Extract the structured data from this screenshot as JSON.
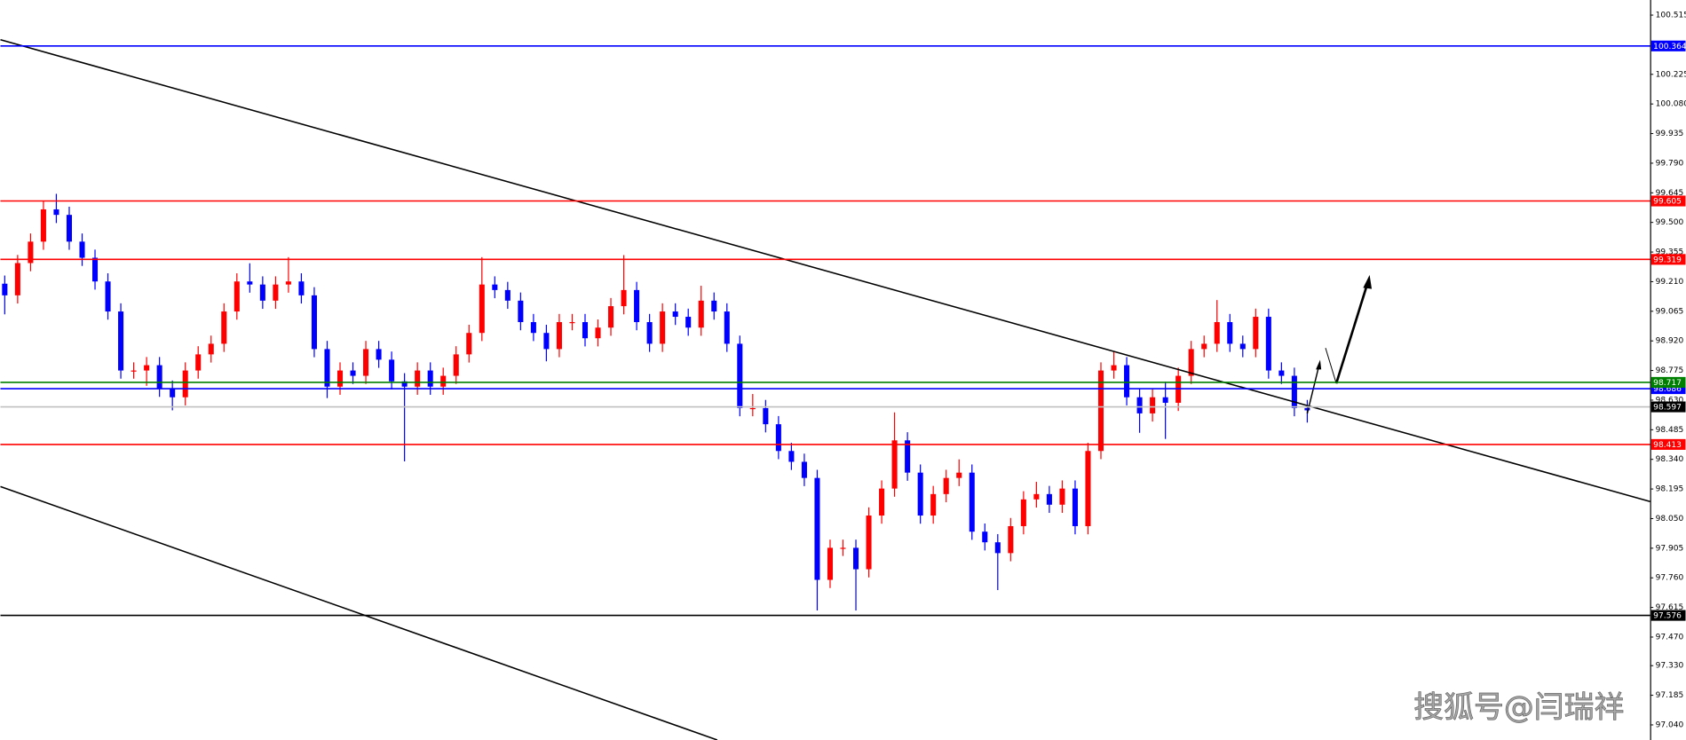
{
  "chart_data": {
    "type": "candlestick",
    "up_color": "#ff0000",
    "down_color": "#0000ff",
    "open": [
      99.2,
      99.143,
      99.301,
      99.406,
      99.564,
      99.537,
      99.406,
      99.327,
      99.211,
      99.064,
      98.775,
      98.775,
      98.801,
      98.686,
      98.644,
      98.775,
      98.854,
      98.906,
      99.064,
      99.211,
      99.196,
      99.117,
      99.196,
      99.211,
      99.143,
      98.88,
      98.696,
      98.775,
      98.749,
      98.88,
      98.828,
      98.722,
      98.696,
      98.775,
      98.696,
      98.749,
      98.854,
      98.959,
      99.196,
      99.169,
      99.117,
      99.012,
      98.959,
      98.88,
      99.012,
      99.012,
      98.933,
      98.985,
      99.09,
      99.169,
      99.012,
      98.906,
      99.064,
      99.038,
      98.985,
      99.117,
      99.064,
      98.906,
      98.591,
      98.591,
      98.512,
      98.381,
      98.328,
      98.249,
      97.75,
      97.907,
      97.907,
      97.802,
      98.065,
      98.197,
      98.433,
      98.275,
      98.065,
      98.17,
      98.249,
      98.275,
      97.986,
      97.934,
      97.881,
      98.013,
      98.144,
      98.17,
      98.118,
      98.197,
      98.013,
      98.381,
      98.775,
      98.801,
      98.644,
      98.565,
      98.644,
      98.617,
      98.749,
      98.88,
      98.906,
      99.012,
      98.906,
      98.88,
      99.038,
      98.775,
      98.749,
      98.591
    ],
    "high": [
      99.24,
      99.341,
      99.446,
      99.604,
      99.64,
      99.577,
      99.446,
      99.367,
      99.251,
      99.104,
      98.815,
      98.841,
      98.841,
      98.726,
      98.815,
      98.894,
      98.946,
      99.104,
      99.251,
      99.3,
      99.236,
      99.236,
      99.33,
      99.251,
      99.183,
      98.92,
      98.815,
      98.815,
      98.92,
      98.92,
      98.868,
      98.762,
      98.815,
      98.815,
      98.789,
      98.894,
      98.999,
      99.33,
      99.236,
      99.209,
      99.157,
      99.052,
      98.999,
      99.052,
      99.052,
      99.052,
      99.025,
      99.13,
      99.34,
      99.209,
      99.052,
      99.104,
      99.104,
      99.078,
      99.19,
      99.157,
      99.104,
      98.946,
      98.66,
      98.631,
      98.552,
      98.421,
      98.368,
      98.289,
      97.947,
      97.947,
      97.947,
      98.105,
      98.237,
      98.57,
      98.473,
      98.315,
      98.21,
      98.289,
      98.34,
      98.315,
      98.026,
      97.974,
      98.053,
      98.184,
      98.23,
      98.21,
      98.237,
      98.237,
      98.421,
      98.815,
      98.87,
      98.841,
      98.684,
      98.684,
      98.72,
      98.789,
      98.92,
      98.946,
      99.12,
      99.052,
      98.946,
      99.078,
      99.078,
      98.815,
      98.789,
      98.631
    ],
    "low": [
      99.05,
      99.103,
      99.261,
      99.366,
      99.497,
      99.366,
      99.287,
      99.171,
      99.024,
      98.735,
      98.735,
      98.7,
      98.646,
      98.58,
      98.604,
      98.735,
      98.814,
      98.866,
      99.024,
      99.156,
      99.077,
      99.077,
      99.156,
      99.103,
      98.84,
      98.64,
      98.656,
      98.709,
      98.709,
      98.788,
      98.682,
      98.33,
      98.656,
      98.656,
      98.656,
      98.709,
      98.814,
      98.919,
      99.129,
      99.077,
      98.972,
      98.919,
      98.82,
      98.84,
      98.972,
      98.893,
      98.893,
      98.945,
      99.05,
      98.972,
      98.866,
      98.866,
      98.998,
      98.945,
      98.945,
      99.024,
      98.866,
      98.551,
      98.551,
      98.472,
      98.341,
      98.288,
      98.209,
      97.6,
      97.71,
      97.867,
      97.6,
      97.762,
      98.025,
      98.157,
      98.235,
      98.025,
      98.025,
      98.13,
      98.209,
      97.946,
      97.894,
      97.7,
      97.841,
      97.973,
      98.104,
      98.078,
      98.078,
      97.973,
      97.973,
      98.341,
      98.735,
      98.604,
      98.47,
      98.525,
      98.44,
      98.577,
      98.709,
      98.84,
      98.866,
      98.866,
      98.84,
      98.84,
      98.735,
      98.709,
      98.551,
      98.52
    ],
    "close": [
      99.143,
      99.301,
      99.406,
      99.564,
      99.537,
      99.406,
      99.327,
      99.211,
      99.064,
      98.775,
      98.775,
      98.801,
      98.686,
      98.644,
      98.775,
      98.854,
      98.906,
      99.064,
      99.211,
      99.196,
      99.117,
      99.196,
      99.211,
      99.143,
      98.88,
      98.696,
      98.775,
      98.749,
      98.88,
      98.828,
      98.722,
      98.696,
      98.775,
      98.696,
      98.749,
      98.854,
      98.959,
      99.196,
      99.169,
      99.117,
      99.012,
      98.959,
      98.88,
      99.012,
      99.012,
      98.933,
      98.985,
      99.09,
      99.169,
      99.012,
      98.906,
      99.064,
      99.038,
      98.985,
      99.117,
      99.064,
      98.906,
      98.591,
      98.591,
      98.512,
      98.381,
      98.328,
      98.249,
      97.75,
      97.907,
      97.907,
      97.802,
      98.065,
      98.197,
      98.433,
      98.275,
      98.065,
      98.17,
      98.249,
      98.275,
      97.986,
      97.934,
      97.881,
      98.013,
      98.144,
      98.17,
      98.118,
      98.197,
      98.013,
      98.381,
      98.775,
      98.801,
      98.644,
      98.565,
      98.644,
      98.617,
      98.749,
      98.88,
      98.906,
      99.012,
      98.906,
      98.88,
      99.038,
      98.775,
      98.749,
      98.591,
      98.58
    ],
    "ylim": [
      96.966,
      100.589
    ],
    "yticks": [
      100.515,
      100.225,
      {
        "value": 100.08,
        "label": "100.080"
      },
      99.935,
      {
        "value": 99.79,
        "label": "99.790"
      },
      99.645,
      {
        "value": 99.5,
        "label": "99.500"
      },
      99.355,
      {
        "value": 99.21,
        "label": "99.210"
      },
      99.065,
      {
        "value": 98.92,
        "label": "98.920"
      },
      98.775,
      {
        "value": 98.63,
        "label": "98.630"
      },
      98.485,
      {
        "value": 98.34,
        "label": "98.340"
      },
      98.195,
      {
        "value": 98.05,
        "label": "98.050"
      },
      97.905,
      {
        "value": 97.76,
        "label": "97.760"
      },
      97.615,
      {
        "value": 97.47,
        "label": "97.470"
      },
      {
        "value": 97.33,
        "label": "97.330"
      },
      97.185,
      {
        "value": 97.04,
        "label": "97.040"
      }
    ],
    "levels": [
      {
        "value": 100.364,
        "color": "#0000ff"
      },
      {
        "value": 99.605,
        "color": "#ff0000"
      },
      {
        "value": 99.319,
        "color": "#ff0000"
      },
      {
        "value": 98.597,
        "color": "#c0c0c0",
        "label_color": "#000000"
      },
      {
        "value": 98.686,
        "color": "#0000ff"
      },
      {
        "value": 98.717,
        "color": "#008000"
      },
      {
        "value": 98.413,
        "color": "#ff0000"
      },
      {
        "value": 97.576,
        "color": "#000000"
      }
    ]
  },
  "watermark": "搜狐号@闫瑞祥"
}
